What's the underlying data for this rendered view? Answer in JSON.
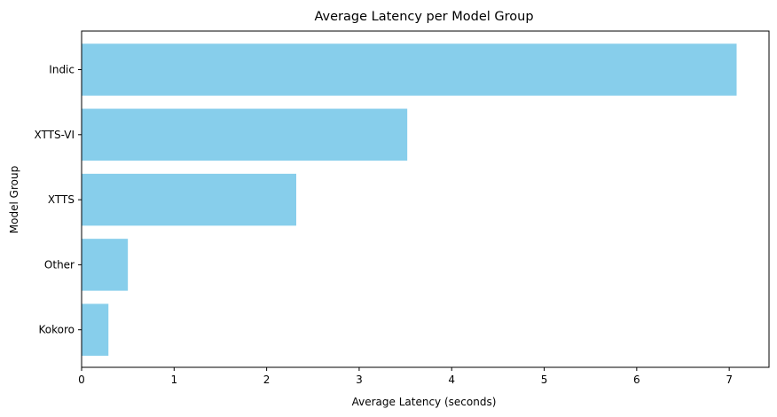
{
  "chart_data": {
    "type": "bar",
    "orientation": "horizontal",
    "title": "Average Latency per Model Group",
    "xlabel": "Average Latency (seconds)",
    "ylabel": "Model Group",
    "categories": [
      "Indic",
      "XTTS-VI",
      "XTTS",
      "Other",
      "Kokoro"
    ],
    "values": [
      7.08,
      3.52,
      2.32,
      0.5,
      0.29
    ],
    "xlim": [
      0,
      7.43
    ],
    "xticks": [
      0,
      1,
      2,
      3,
      4,
      5,
      6,
      7
    ],
    "grid": false,
    "legend": "none",
    "bar_color": "#87ceeb"
  }
}
